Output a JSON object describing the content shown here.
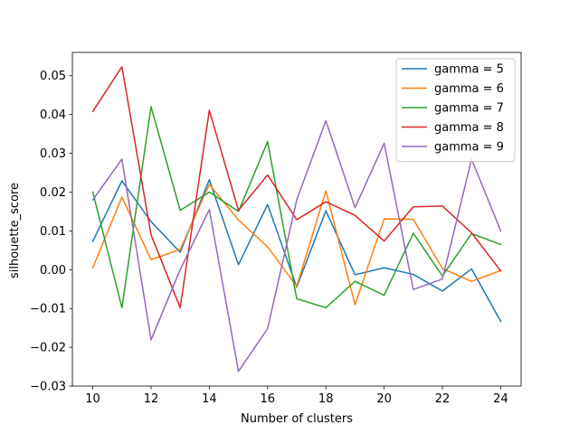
{
  "chart_data": {
    "type": "line",
    "title": "",
    "xlabel": "Number of clusters",
    "ylabel": "silhouette_score",
    "x": [
      10,
      11,
      12,
      13,
      14,
      15,
      16,
      17,
      18,
      19,
      20,
      21,
      22,
      23,
      24
    ],
    "xlim": [
      9.3,
      24.7
    ],
    "ylim": [
      -0.03,
      0.056
    ],
    "x_ticks": [
      10,
      12,
      14,
      16,
      18,
      20,
      22,
      24
    ],
    "y_ticks": [
      -0.03,
      -0.02,
      -0.01,
      0.0,
      0.01,
      0.02,
      0.03,
      0.04,
      0.05
    ],
    "y_tick_labels": [
      "−0.03",
      "−0.02",
      "−0.01",
      "0.00",
      "0.01",
      "0.02",
      "0.03",
      "0.04",
      "0.05"
    ],
    "grid": false,
    "legend_position": "top-right",
    "series": [
      {
        "name": "gamma = 5",
        "color": "#1f77b4",
        "values": [
          0.0073,
          0.0229,
          0.0124,
          0.0045,
          0.0232,
          0.0013,
          0.0168,
          -0.0045,
          0.0152,
          -0.0013,
          0.0005,
          -0.0012,
          -0.0055,
          0.0002,
          -0.0133
        ]
      },
      {
        "name": "gamma = 6",
        "color": "#ff7f0e",
        "values": [
          0.0005,
          0.0187,
          0.0026,
          0.0052,
          0.022,
          0.0128,
          0.0059,
          -0.0043,
          0.0203,
          -0.009,
          0.0131,
          0.013,
          0.0003,
          -0.003,
          -0.0002
        ]
      },
      {
        "name": "gamma = 7",
        "color": "#2ca02c",
        "values": [
          0.02,
          -0.0098,
          0.042,
          0.0153,
          0.02,
          0.015,
          0.033,
          -0.0075,
          -0.0098,
          -0.003,
          -0.0066,
          0.0094,
          -0.0016,
          0.0093,
          0.0065
        ]
      },
      {
        "name": "gamma = 8",
        "color": "#d62728",
        "values": [
          0.0408,
          0.0523,
          0.009,
          -0.0098,
          0.0411,
          0.0153,
          0.0244,
          0.0129,
          0.0175,
          0.014,
          0.0074,
          0.0162,
          0.0164,
          0.0095,
          -0.0003
        ]
      },
      {
        "name": "gamma = 9",
        "color": "#9467bd",
        "values": [
          0.018,
          0.0285,
          -0.0181,
          0.0,
          0.0155,
          -0.0262,
          -0.0152,
          0.018,
          0.0384,
          0.016,
          0.0326,
          -0.0051,
          -0.0024,
          0.0285,
          0.01
        ]
      }
    ]
  }
}
